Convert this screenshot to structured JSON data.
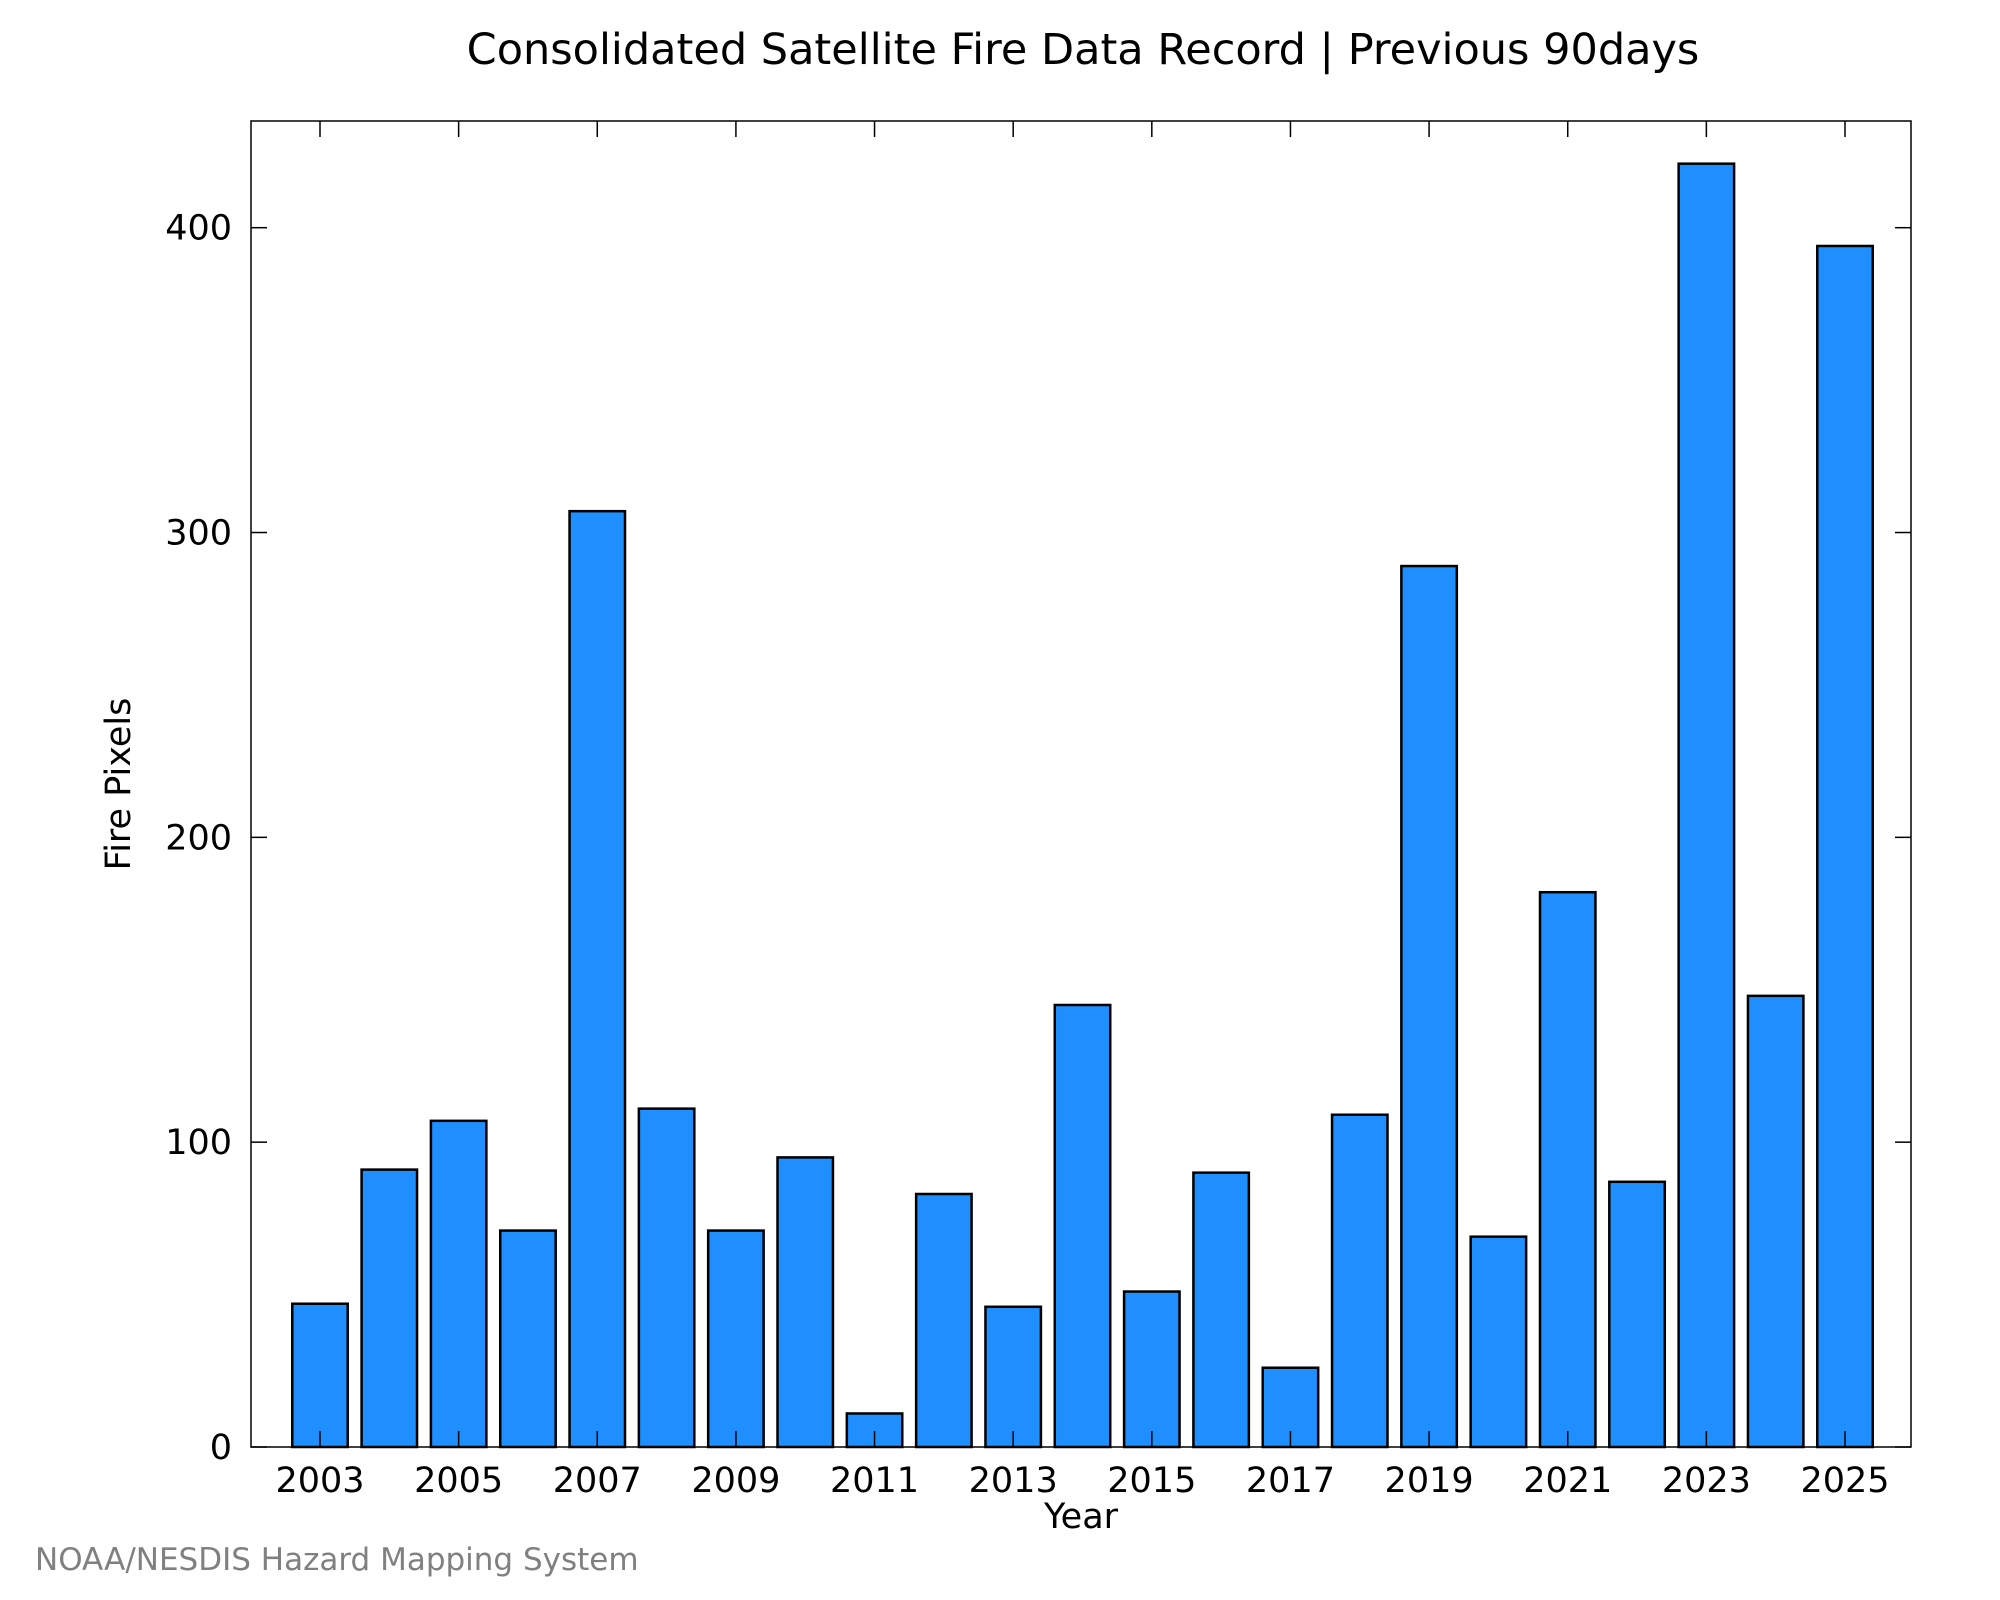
{
  "chart_data": {
    "type": "bar",
    "title": "Consolidated Satellite Fire Data Record | Previous 90days",
    "xlabel": "Year",
    "ylabel": "Fire Pixels",
    "categories": [
      "2003",
      "2004",
      "2005",
      "2006",
      "2007",
      "2008",
      "2009",
      "2010",
      "2011",
      "2012",
      "2013",
      "2014",
      "2015",
      "2016",
      "2017",
      "2018",
      "2019",
      "2020",
      "2021",
      "2022",
      "2023",
      "2024",
      "2025"
    ],
    "values": [
      47,
      91,
      107,
      71,
      307,
      111,
      71,
      95,
      11,
      83,
      46,
      145,
      51,
      90,
      26,
      109,
      289,
      69,
      182,
      87,
      421,
      148,
      394
    ],
    "x_tick_labels": [
      "2003",
      "2005",
      "2007",
      "2009",
      "2011",
      "2013",
      "2015",
      "2017",
      "2019",
      "2021",
      "2023",
      "2025"
    ],
    "y_ticks": [
      0,
      100,
      200,
      300,
      400
    ],
    "ylim": [
      0,
      435
    ],
    "grid": false,
    "bar_color": "#1f8fff",
    "edge_color": "#000000"
  },
  "footer": {
    "credit": "NOAA/NESDIS Hazard Mapping System"
  }
}
